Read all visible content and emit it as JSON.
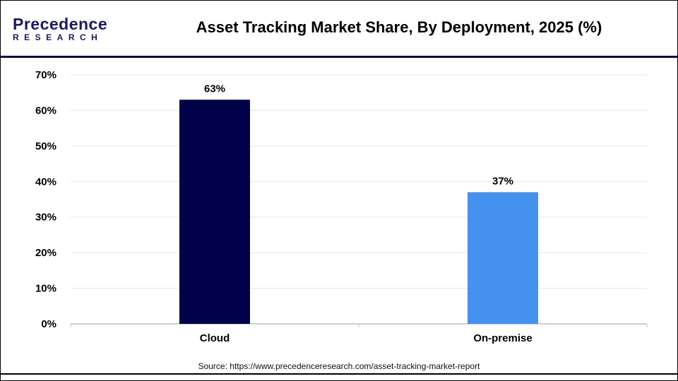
{
  "logo": {
    "line1": "Precedence",
    "line2": "RESEARCH"
  },
  "source": "Source: https://www.precedenceresearch.com/asset-tracking-market-report",
  "chart_data": {
    "type": "bar",
    "title": "Asset Tracking Market Share, By Deployment, 2025 (%)",
    "categories": [
      "Cloud",
      "On-premise"
    ],
    "values": [
      63,
      37
    ],
    "data_labels": [
      "63%",
      "37%"
    ],
    "colors": [
      "#02024a",
      "#4592ee"
    ],
    "ylim": [
      0,
      70
    ],
    "yticks": [
      "0%",
      "10%",
      "20%",
      "30%",
      "40%",
      "50%",
      "60%",
      "70%"
    ],
    "grid": true,
    "xlabel": "",
    "ylabel": ""
  }
}
